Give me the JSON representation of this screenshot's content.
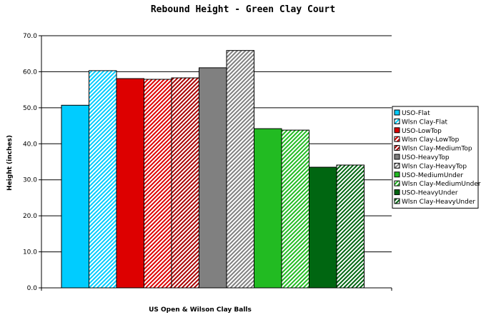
{
  "chart_data": {
    "type": "bar",
    "title": "Rebound Height - Green Clay Court",
    "xlabel": "US Open & Wilson Clay Balls",
    "ylabel": "Height (inches)",
    "ylim": [
      0,
      70
    ],
    "yticks": [
      "0.0",
      "10.0",
      "20.0",
      "30.0",
      "40.0",
      "50.0",
      "60.0",
      "70.0"
    ],
    "grid": true,
    "legend_position": "right",
    "series": [
      {
        "name": "USO-Flat",
        "value": 50.7,
        "color": "#00CCFF",
        "pattern": "solid"
      },
      {
        "name": "Wlsn Clay-Flat",
        "value": 60.3,
        "color": "#00CCFF",
        "pattern": "hatch"
      },
      {
        "name": "USO-LowTop",
        "value": 58.1,
        "color": "#DD0000",
        "pattern": "solid"
      },
      {
        "name": "Wlsn Clay-LowTop",
        "value": 57.9,
        "color": "#DD0000",
        "pattern": "hatch"
      },
      {
        "name": "Wlsn Clay-MediumTop",
        "value": 58.3,
        "color": "#AA0000",
        "pattern": "hatch"
      },
      {
        "name": "USO-HeavyTop",
        "value": 61.1,
        "color": "#808080",
        "pattern": "solid"
      },
      {
        "name": "Wlsn Clay-HeavyTop",
        "value": 65.9,
        "color": "#808080",
        "pattern": "hatch"
      },
      {
        "name": "USO-MediumUnder",
        "value": 44.2,
        "color": "#22BB22",
        "pattern": "solid"
      },
      {
        "name": "Wlsn Clay-MediumUnder",
        "value": 43.8,
        "color": "#22BB22",
        "pattern": "hatch"
      },
      {
        "name": "USO-HeavyUnder",
        "value": 33.5,
        "color": "#006611",
        "pattern": "solid"
      },
      {
        "name": "Wlsn Clay-HeavyUnder",
        "value": 34.1,
        "color": "#006611",
        "pattern": "hatch"
      }
    ]
  }
}
